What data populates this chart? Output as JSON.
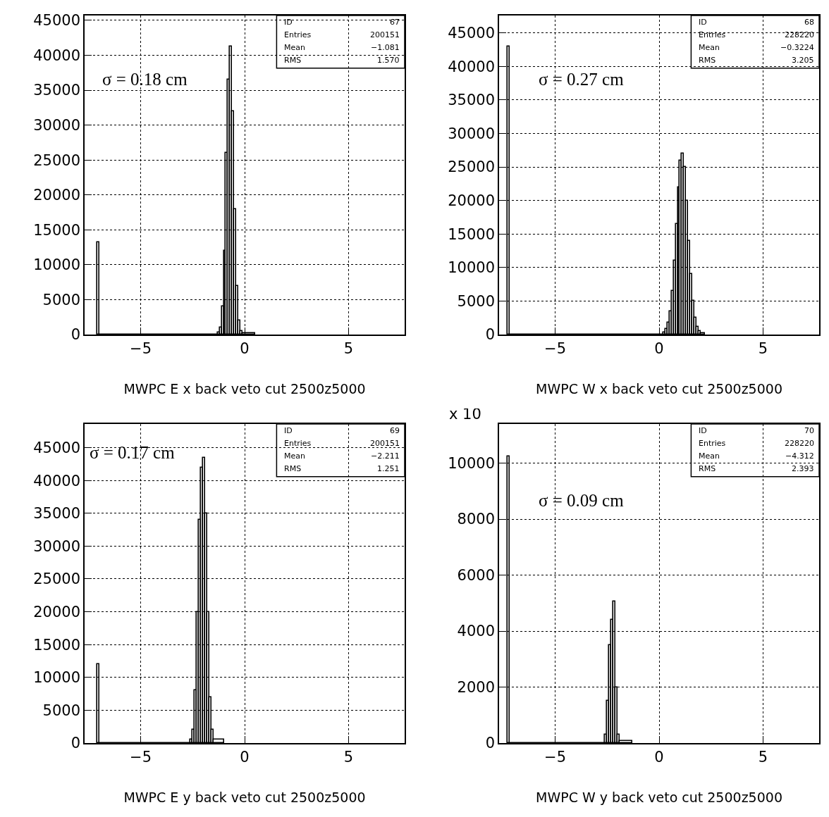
{
  "chart_data": [
    {
      "type": "histogram",
      "xlabel": "MWPC E x back veto cut 2500z5000",
      "color": "#000000",
      "grid": true,
      "xlim": [
        -7.7,
        7.7
      ],
      "ylim": [
        0,
        45700
      ],
      "xticks": [
        -5,
        0,
        5
      ],
      "yticks": [
        0,
        5000,
        10000,
        15000,
        20000,
        25000,
        30000,
        35000,
        40000,
        45000
      ],
      "bins": [
        -7.1,
        -7.0,
        -1.3,
        -1.2,
        -1.1,
        -1.0,
        -0.9,
        -0.8,
        -0.7,
        -0.6,
        -0.5,
        -0.4,
        -0.3,
        -0.2,
        -0.1,
        0.5
      ],
      "values": [
        13200,
        0,
        300,
        1000,
        4000,
        12000,
        26000,
        36500,
        41300,
        32000,
        18000,
        7000,
        2000,
        500,
        200
      ],
      "annotations": [
        "σ = 0.18 cm",
        "ID",
        "67",
        "Entries",
        "200151",
        "Mean",
        "−1.081",
        "RMS",
        "1.570"
      ]
    },
    {
      "type": "histogram",
      "xlabel": "MWPC W x back veto cut 2500z5000",
      "color": "#000000",
      "grid": true,
      "xlim": [
        -7.7,
        7.7
      ],
      "ylim": [
        0,
        47600
      ],
      "xticks": [
        -5,
        0,
        5
      ],
      "yticks": [
        0,
        5000,
        10000,
        15000,
        20000,
        25000,
        30000,
        35000,
        40000,
        45000
      ],
      "bins": [
        -7.3,
        -7.2,
        0.2,
        0.3,
        0.4,
        0.5,
        0.6,
        0.7,
        0.8,
        0.9,
        1.0,
        1.1,
        1.2,
        1.3,
        1.4,
        1.5,
        1.6,
        1.7,
        1.8,
        1.9,
        2.0,
        2.2
      ],
      "values": [
        43000,
        0,
        300,
        800,
        1800,
        3500,
        6500,
        11000,
        16500,
        22000,
        26000,
        27000,
        25000,
        20000,
        14000,
        9000,
        5000,
        2500,
        1200,
        500,
        200
      ],
      "annotations": [
        "σ = 0.27 cm",
        "ID",
        "68",
        "Entries",
        "228220",
        "Mean",
        "−0.3224",
        "RMS",
        "3.205"
      ]
    },
    {
      "type": "histogram",
      "xlabel": "MWPC E y back veto cut 2500z5000",
      "color": "#000000",
      "grid": true,
      "xlim": [
        -7.7,
        7.7
      ],
      "ylim": [
        0,
        48600
      ],
      "xticks": [
        -5,
        0,
        5
      ],
      "yticks": [
        0,
        5000,
        10000,
        15000,
        20000,
        25000,
        30000,
        35000,
        40000,
        45000
      ],
      "bins": [
        -7.1,
        -7.0,
        -2.6,
        -2.5,
        -2.4,
        -2.3,
        -2.2,
        -2.1,
        -2.0,
        -1.9,
        -1.8,
        -1.7,
        -1.6,
        -1.5,
        -1.0
      ],
      "values": [
        12000,
        0,
        500,
        2000,
        8000,
        20000,
        34000,
        42000,
        43500,
        35000,
        20000,
        7000,
        2000,
        500
      ],
      "annotations": [
        "σ = 0.17 cm",
        "ID",
        "69",
        "Entries",
        "200151",
        "Mean",
        "−2.211",
        "RMS",
        "1.251"
      ]
    },
    {
      "type": "histogram",
      "xlabel": "MWPC W y back veto cut 2500z5000",
      "ylabel": "x 10",
      "color": "#000000",
      "grid": true,
      "xlim": [
        -7.7,
        7.7
      ],
      "ylim": [
        0,
        11400
      ],
      "xticks": [
        -5,
        0,
        5
      ],
      "yticks": [
        0,
        2000,
        4000,
        6000,
        8000,
        10000
      ],
      "bins": [
        -7.3,
        -7.2,
        -2.6,
        -2.5,
        -2.4,
        -2.3,
        -2.2,
        -2.1,
        -2.0,
        -1.9,
        -1.3
      ],
      "values": [
        10250,
        0,
        300,
        1500,
        3500,
        4400,
        5050,
        2000,
        300,
        80
      ],
      "annotations": [
        "σ = 0.09 cm",
        "ID",
        "70",
        "Entries",
        "228220",
        "Mean",
        "−4.312",
        "RMS",
        "2.393"
      ]
    }
  ]
}
